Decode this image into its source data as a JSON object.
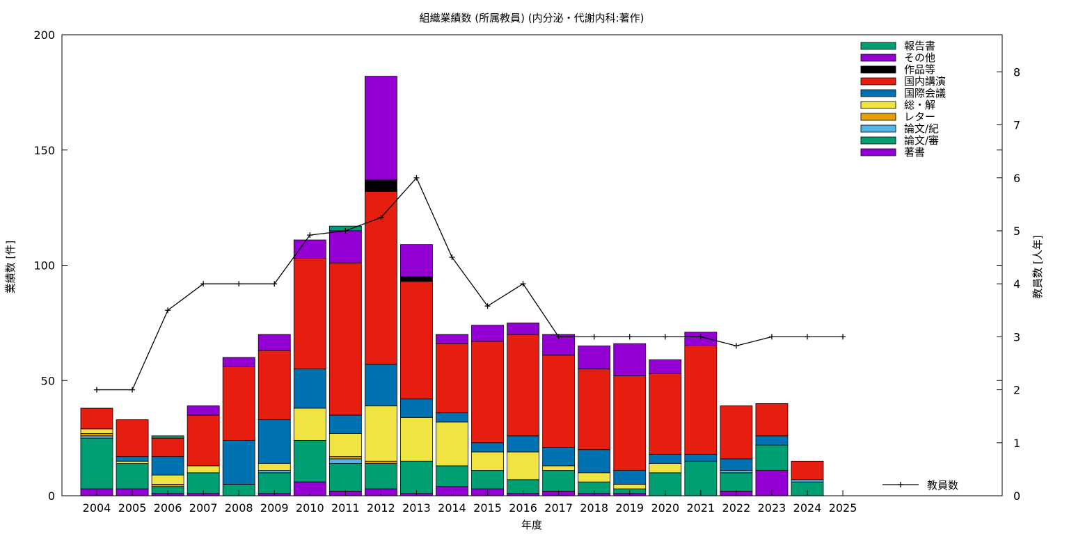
{
  "chart_data": {
    "type": "bar",
    "stacked": true,
    "title": "組織業績数 (所属教員) (内分泌・代謝内科:著作)",
    "xlabel": "年度",
    "ylabel": "業績数 [件]",
    "y2label": "教員数 [人年]",
    "categories": [
      "2004",
      "2005",
      "2006",
      "2007",
      "2008",
      "2009",
      "2010",
      "2011",
      "2012",
      "2013",
      "2014",
      "2015",
      "2016",
      "2017",
      "2018",
      "2019",
      "2020",
      "2021",
      "2022",
      "2023",
      "2024",
      "2025"
    ],
    "ylim": [
      0,
      200
    ],
    "yticks": [
      "0",
      "50",
      "100",
      "150",
      "200"
    ],
    "y2lim": [
      0,
      8.7
    ],
    "y2ticks": [
      "0",
      "1",
      "2",
      "3",
      "4",
      "5",
      "6",
      "7",
      "8"
    ],
    "grid": false,
    "legend_position": "top-right",
    "series": [
      {
        "name": "著書",
        "color": "#9400d3",
        "values": [
          3,
          3,
          1,
          1,
          0,
          1,
          6,
          2,
          3,
          1,
          4,
          3,
          1,
          2,
          1,
          1,
          0,
          0,
          2,
          11,
          0,
          0
        ]
      },
      {
        "name": "論文/審",
        "color": "#009e73",
        "values": [
          22,
          11,
          3,
          9,
          5,
          9,
          18,
          12,
          11,
          14,
          9,
          8,
          6,
          9,
          5,
          2,
          10,
          15,
          8,
          11,
          6,
          0
        ]
      },
      {
        "name": "論文/紀",
        "color": "#56b4e9",
        "values": [
          1,
          0,
          0,
          0,
          0,
          1,
          0,
          2,
          0,
          0,
          0,
          0,
          0,
          0,
          0,
          0,
          0,
          0,
          1,
          0,
          1,
          0
        ]
      },
      {
        "name": "レター",
        "color": "#e69f00",
        "values": [
          1,
          0,
          1,
          0,
          0,
          0,
          0,
          1,
          1,
          0,
          0,
          0,
          0,
          0,
          0,
          0,
          0,
          0,
          0,
          0,
          0,
          0
        ]
      },
      {
        "name": "総・解",
        "color": "#f0e442",
        "values": [
          2,
          1,
          4,
          3,
          0,
          3,
          14,
          10,
          24,
          19,
          19,
          8,
          12,
          2,
          4,
          2,
          4,
          0,
          0,
          0,
          0,
          0
        ]
      },
      {
        "name": "国際会議",
        "color": "#0072b2",
        "values": [
          0,
          2,
          8,
          0,
          19,
          19,
          17,
          8,
          18,
          8,
          4,
          4,
          7,
          8,
          10,
          6,
          4,
          3,
          5,
          4,
          0,
          0
        ]
      },
      {
        "name": "国内講演",
        "color": "#e51e10",
        "values": [
          9,
          16,
          8,
          22,
          32,
          30,
          48,
          66,
          75,
          51,
          30,
          44,
          44,
          40,
          35,
          41,
          35,
          47,
          23,
          14,
          8,
          0
        ]
      },
      {
        "name": "作品等",
        "color": "#000000",
        "values": [
          0,
          0,
          0,
          0,
          0,
          0,
          0,
          0,
          5,
          2,
          0,
          0,
          0,
          0,
          0,
          0,
          0,
          0,
          0,
          0,
          0,
          0
        ]
      },
      {
        "name": "その他",
        "color": "#9400d3",
        "values": [
          0,
          0,
          0,
          4,
          4,
          7,
          8,
          14,
          45,
          14,
          4,
          7,
          5,
          9,
          10,
          14,
          6,
          6,
          0,
          0,
          0,
          0
        ]
      },
      {
        "name": "報告書",
        "color": "#009e73",
        "values": [
          0,
          0,
          1,
          0,
          0,
          0,
          0,
          2,
          0,
          0,
          0,
          0,
          0,
          0,
          0,
          0,
          0,
          0,
          0,
          0,
          0,
          0
        ]
      }
    ],
    "line_series": {
      "name": "教員数",
      "color": "#000000",
      "axis": "y2",
      "values": [
        2,
        2,
        3.5,
        4,
        4,
        4,
        4.92,
        5,
        5.25,
        6,
        4.5,
        3.58,
        4,
        3,
        3,
        3,
        3,
        3,
        2.83,
        3,
        3,
        3
      ]
    }
  }
}
